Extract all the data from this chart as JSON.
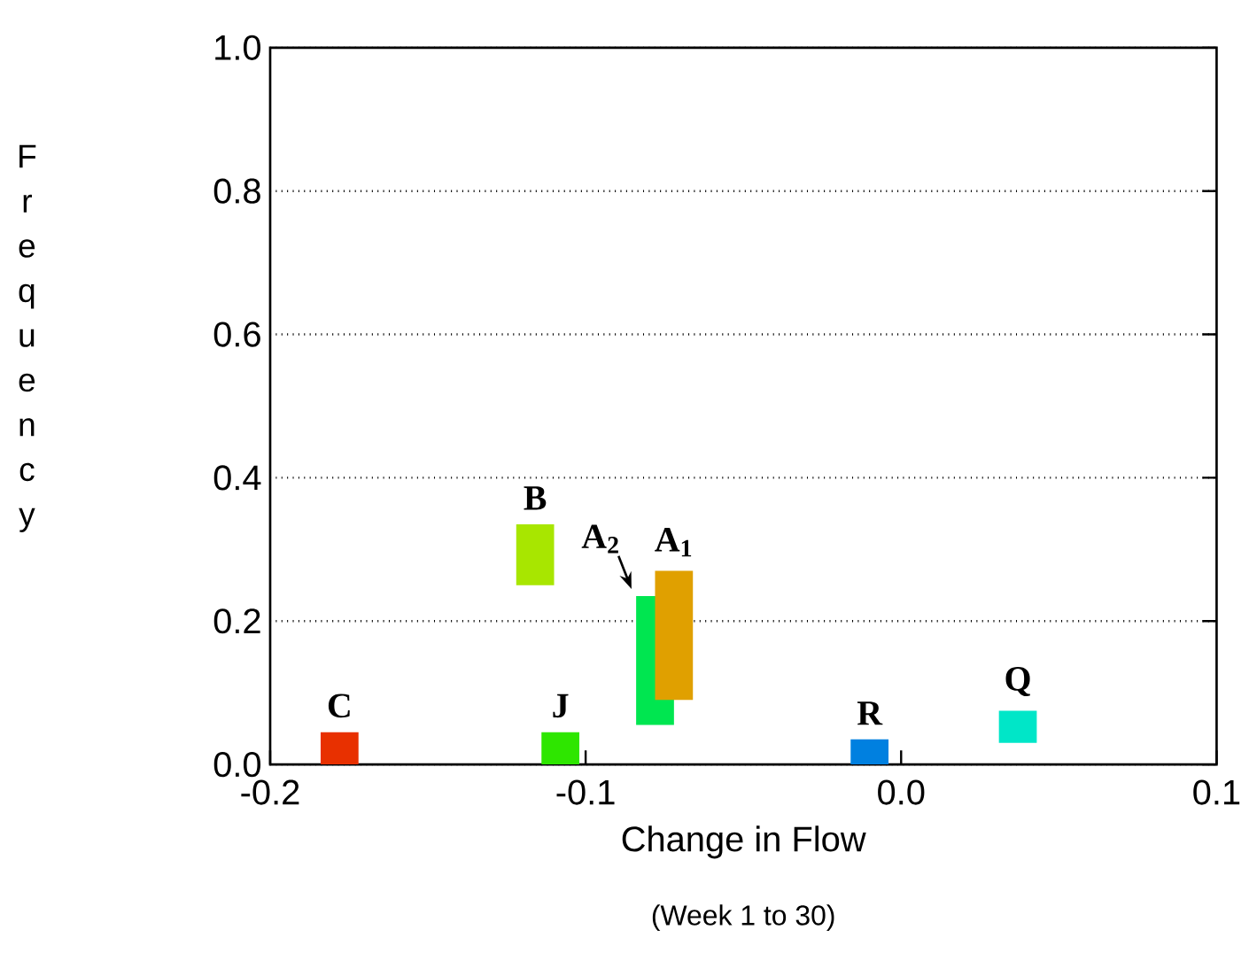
{
  "chart_data": {
    "type": "bar",
    "x": [
      -0.178,
      -0.116,
      -0.108,
      -0.078,
      -0.072,
      -0.01,
      0.037
    ],
    "base": [
      0,
      0.25,
      0,
      0.055,
      0.09,
      0,
      0.03
    ],
    "values": [
      0.045,
      0.085,
      0.045,
      0.18,
      0.18,
      0.035,
      0.045
    ],
    "colors": [
      "#e83000",
      "#a8e600",
      "#2ee600",
      "#00e650",
      "#e0a000",
      "#0080e0",
      "#00e6c8"
    ],
    "xlabel": "Change in Flow",
    "ylabel": "Frequency",
    "xlim": [
      -0.2,
      0.1
    ],
    "xticks": [
      -0.2,
      -0.1,
      {
        "value": 0,
        "label": "0.0"
      },
      0.1
    ],
    "ylim": [
      0,
      1
    ],
    "yticks": [
      {
        "value": 0,
        "label": "0.0"
      },
      0.2,
      0.4,
      0.6,
      0.8,
      {
        "value": 1,
        "label": "1.0"
      }
    ],
    "grid": "y",
    "annotations": [
      {
        "text": "C",
        "x": -0.178,
        "y": 0.045
      },
      {
        "text": "B",
        "x": -0.116,
        "y": 0.335
      },
      {
        "text": "J",
        "x": -0.108,
        "y": 0.045
      },
      {
        "text": "A$_{2}$",
        "x": -0.078,
        "y": 0.235
      },
      {
        "text": "A$_{1}$",
        "x": -0.072,
        "y": 0.27
      },
      {
        "text": "R",
        "x": -0.01,
        "y": 0.035
      },
      {
        "text": "Q",
        "x": 0.037,
        "y": 0.075
      },
      "(Week 1 to 30)"
    ]
  }
}
